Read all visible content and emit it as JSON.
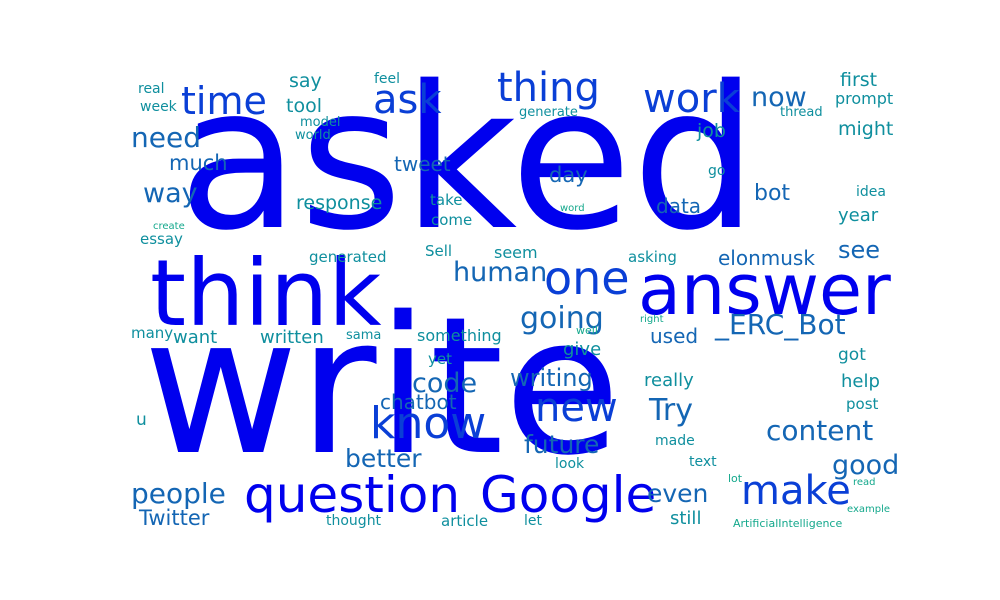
{
  "palette": {
    "blue": "#0000ee",
    "mid_blue": "#0a3fd6",
    "steel_blue": "#1466b4",
    "teal": "#0f8f9e",
    "green_teal": "#14a88c"
  },
  "words": [
    {
      "text": "write",
      "weight": 1.0,
      "color": "#0000ee"
    },
    {
      "text": "asked",
      "weight": 0.95,
      "color": "#0000ee"
    },
    {
      "text": "think",
      "weight": 0.55,
      "color": "#0000ee"
    },
    {
      "text": "answer",
      "weight": 0.42,
      "color": "#0000ee"
    },
    {
      "text": "Google",
      "weight": 0.3,
      "color": "#0000ee"
    },
    {
      "text": "question",
      "weight": 0.3,
      "color": "#0000ee"
    },
    {
      "text": "one",
      "weight": 0.28,
      "color": "#0a3fd6"
    },
    {
      "text": "know",
      "weight": 0.26,
      "color": "#0a3fd6"
    },
    {
      "text": "make",
      "weight": 0.24,
      "color": "#0a3fd6"
    },
    {
      "text": "new",
      "weight": 0.24,
      "color": "#0a3fd6"
    },
    {
      "text": "ask",
      "weight": 0.22,
      "color": "#0a3fd6"
    },
    {
      "text": "thing",
      "weight": 0.22,
      "color": "#0a3fd6"
    },
    {
      "text": "work",
      "weight": 0.22,
      "color": "#0a3fd6"
    },
    {
      "text": "time",
      "weight": 0.22,
      "color": "#0a3fd6"
    },
    {
      "text": "content",
      "weight": 0.18,
      "color": "#1466b4"
    },
    {
      "text": "going",
      "weight": 0.18,
      "color": "#1466b4"
    },
    {
      "text": "_ERC_Bot",
      "weight": 0.16,
      "color": "#1466b4"
    },
    {
      "text": "Try",
      "weight": 0.16,
      "color": "#1466b4"
    },
    {
      "text": "people",
      "weight": 0.16,
      "color": "#1466b4"
    },
    {
      "text": "need",
      "weight": 0.16,
      "color": "#1466b4"
    },
    {
      "text": "good",
      "weight": 0.16,
      "color": "#1466b4"
    },
    {
      "text": "human",
      "weight": 0.14,
      "color": "#1466b4"
    },
    {
      "text": "now",
      "weight": 0.14,
      "color": "#1466b4"
    },
    {
      "text": "code",
      "weight": 0.14,
      "color": "#1466b4"
    },
    {
      "text": "way",
      "weight": 0.14,
      "color": "#1466b4"
    },
    {
      "text": "better",
      "weight": 0.14,
      "color": "#1466b4"
    },
    {
      "text": "future",
      "weight": 0.14,
      "color": "#1466b4"
    },
    {
      "text": "even",
      "weight": 0.14,
      "color": "#1466b4"
    },
    {
      "text": "see",
      "weight": 0.13,
      "color": "#1466b4"
    },
    {
      "text": "writing",
      "weight": 0.12,
      "color": "#1466b4"
    },
    {
      "text": "Twitter",
      "weight": 0.12,
      "color": "#1466b4"
    },
    {
      "text": "bot",
      "weight": 0.12,
      "color": "#1466b4"
    },
    {
      "text": "much",
      "weight": 0.12,
      "color": "#1466b4"
    },
    {
      "text": "day",
      "weight": 0.12,
      "color": "#1466b4"
    },
    {
      "text": "elonmusk",
      "weight": 0.11,
      "color": "#1466b4"
    },
    {
      "text": "used",
      "weight": 0.11,
      "color": "#1466b4"
    },
    {
      "text": "chatbot",
      "weight": 0.11,
      "color": "#1466b4"
    },
    {
      "text": "data",
      "weight": 0.1,
      "color": "#1466b4"
    },
    {
      "text": "tweet",
      "weight": 0.1,
      "color": "#1466b4"
    },
    {
      "text": "first",
      "weight": 0.1,
      "color": "#0f8f9e"
    },
    {
      "text": "say",
      "weight": 0.1,
      "color": "#0f8f9e"
    },
    {
      "text": "response",
      "weight": 0.1,
      "color": "#0f8f9e"
    },
    {
      "text": "job",
      "weight": 0.1,
      "color": "#0f8f9e"
    },
    {
      "text": "might",
      "weight": 0.1,
      "color": "#0f8f9e"
    },
    {
      "text": "tool",
      "weight": 0.1,
      "color": "#0f8f9e"
    },
    {
      "text": "year",
      "weight": 0.1,
      "color": "#0f8f9e"
    },
    {
      "text": "give",
      "weight": 0.1,
      "color": "#0f8f9e"
    },
    {
      "text": "help",
      "weight": 0.1,
      "color": "#0f8f9e"
    },
    {
      "text": "written",
      "weight": 0.1,
      "color": "#0f8f9e"
    },
    {
      "text": "really",
      "weight": 0.1,
      "color": "#0f8f9e"
    },
    {
      "text": "something",
      "weight": 0.09,
      "color": "#0f8f9e"
    },
    {
      "text": "still",
      "weight": 0.09,
      "color": "#0f8f9e"
    },
    {
      "text": "want",
      "weight": 0.09,
      "color": "#0f8f9e"
    },
    {
      "text": "got",
      "weight": 0.09,
      "color": "#0f8f9e"
    },
    {
      "text": "u",
      "weight": 0.09,
      "color": "#0f8f9e"
    },
    {
      "text": "prompt",
      "weight": 0.09,
      "color": "#0f8f9e"
    },
    {
      "text": "seem",
      "weight": 0.09,
      "color": "#0f8f9e"
    },
    {
      "text": "post",
      "weight": 0.08,
      "color": "#0f8f9e"
    },
    {
      "text": "asking",
      "weight": 0.08,
      "color": "#0f8f9e"
    },
    {
      "text": "article",
      "weight": 0.08,
      "color": "#0f8f9e"
    },
    {
      "text": "generated",
      "weight": 0.08,
      "color": "#0f8f9e"
    },
    {
      "text": "essay",
      "weight": 0.08,
      "color": "#0f8f9e"
    },
    {
      "text": "many",
      "weight": 0.08,
      "color": "#0f8f9e"
    },
    {
      "text": "yet",
      "weight": 0.08,
      "color": "#0f8f9e"
    },
    {
      "text": "Sell",
      "weight": 0.08,
      "color": "#0f8f9e"
    },
    {
      "text": "come",
      "weight": 0.08,
      "color": "#0f8f9e"
    },
    {
      "text": "take",
      "weight": 0.08,
      "color": "#0f8f9e"
    },
    {
      "text": "idea",
      "weight": 0.08,
      "color": "#0f8f9e"
    },
    {
      "text": "text",
      "weight": 0.08,
      "color": "#0f8f9e"
    },
    {
      "text": "made",
      "weight": 0.08,
      "color": "#0f8f9e"
    },
    {
      "text": "look",
      "weight": 0.08,
      "color": "#0f8f9e"
    },
    {
      "text": "thought",
      "weight": 0.08,
      "color": "#0f8f9e"
    },
    {
      "text": "let",
      "weight": 0.08,
      "color": "#0f8f9e"
    },
    {
      "text": "real",
      "weight": 0.08,
      "color": "#0f8f9e"
    },
    {
      "text": "week",
      "weight": 0.08,
      "color": "#0f8f9e"
    },
    {
      "text": "feel",
      "weight": 0.08,
      "color": "#0f8f9e"
    },
    {
      "text": "model",
      "weight": 0.07,
      "color": "#0f8f9e"
    },
    {
      "text": "world",
      "weight": 0.07,
      "color": "#0f8f9e"
    },
    {
      "text": "generate",
      "weight": 0.07,
      "color": "#0f8f9e"
    },
    {
      "text": "thread",
      "weight": 0.07,
      "color": "#0f8f9e"
    },
    {
      "text": "go",
      "weight": 0.07,
      "color": "#0f8f9e"
    },
    {
      "text": "sama",
      "weight": 0.07,
      "color": "#0f8f9e"
    },
    {
      "text": "well",
      "weight": 0.05,
      "color": "#14a88c"
    },
    {
      "text": "word",
      "weight": 0.05,
      "color": "#14a88c"
    },
    {
      "text": "create",
      "weight": 0.05,
      "color": "#14a88c"
    },
    {
      "text": "right",
      "weight": 0.05,
      "color": "#14a88c"
    },
    {
      "text": "lot",
      "weight": 0.05,
      "color": "#14a88c"
    },
    {
      "text": "read",
      "weight": 0.05,
      "color": "#14a88c"
    },
    {
      "text": "example",
      "weight": 0.05,
      "color": "#14a88c"
    },
    {
      "text": "ArtificialIntelligence",
      "weight": 0.05,
      "color": "#14a88c"
    }
  ]
}
